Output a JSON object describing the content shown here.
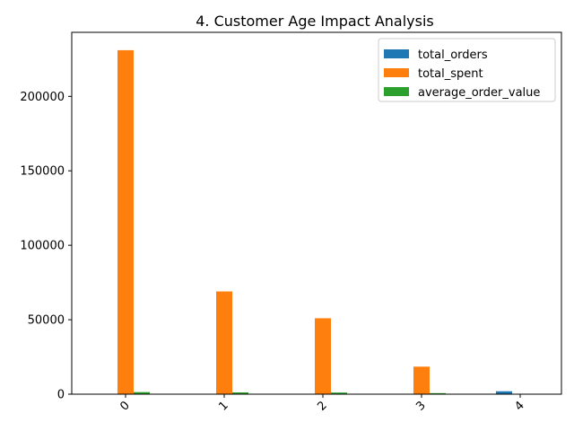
{
  "chart_data": {
    "type": "bar",
    "title": "4. Customer Age Impact Analysis",
    "xlabel": "",
    "ylabel": "",
    "categories": [
      "0",
      "1",
      "2",
      "3",
      "4"
    ],
    "series": [
      {
        "name": "total_orders",
        "color": "#1f77b4",
        "values": [
          60,
          25,
          20,
          8,
          1950
        ]
      },
      {
        "name": "total_spent",
        "color": "#ff7f0e",
        "values": [
          231000,
          69000,
          51000,
          18500,
          0
        ]
      },
      {
        "name": "average_order_value",
        "color": "#2ca02c",
        "values": [
          1400,
          1200,
          1100,
          700,
          0
        ]
      }
    ],
    "ylim": [
      0,
      243000
    ],
    "yticks": [
      0,
      50000,
      100000,
      150000,
      200000
    ],
    "ytick_labels": [
      "0",
      "50000",
      "100000",
      "150000",
      "200000"
    ],
    "legend": "top-right",
    "grid": false
  }
}
